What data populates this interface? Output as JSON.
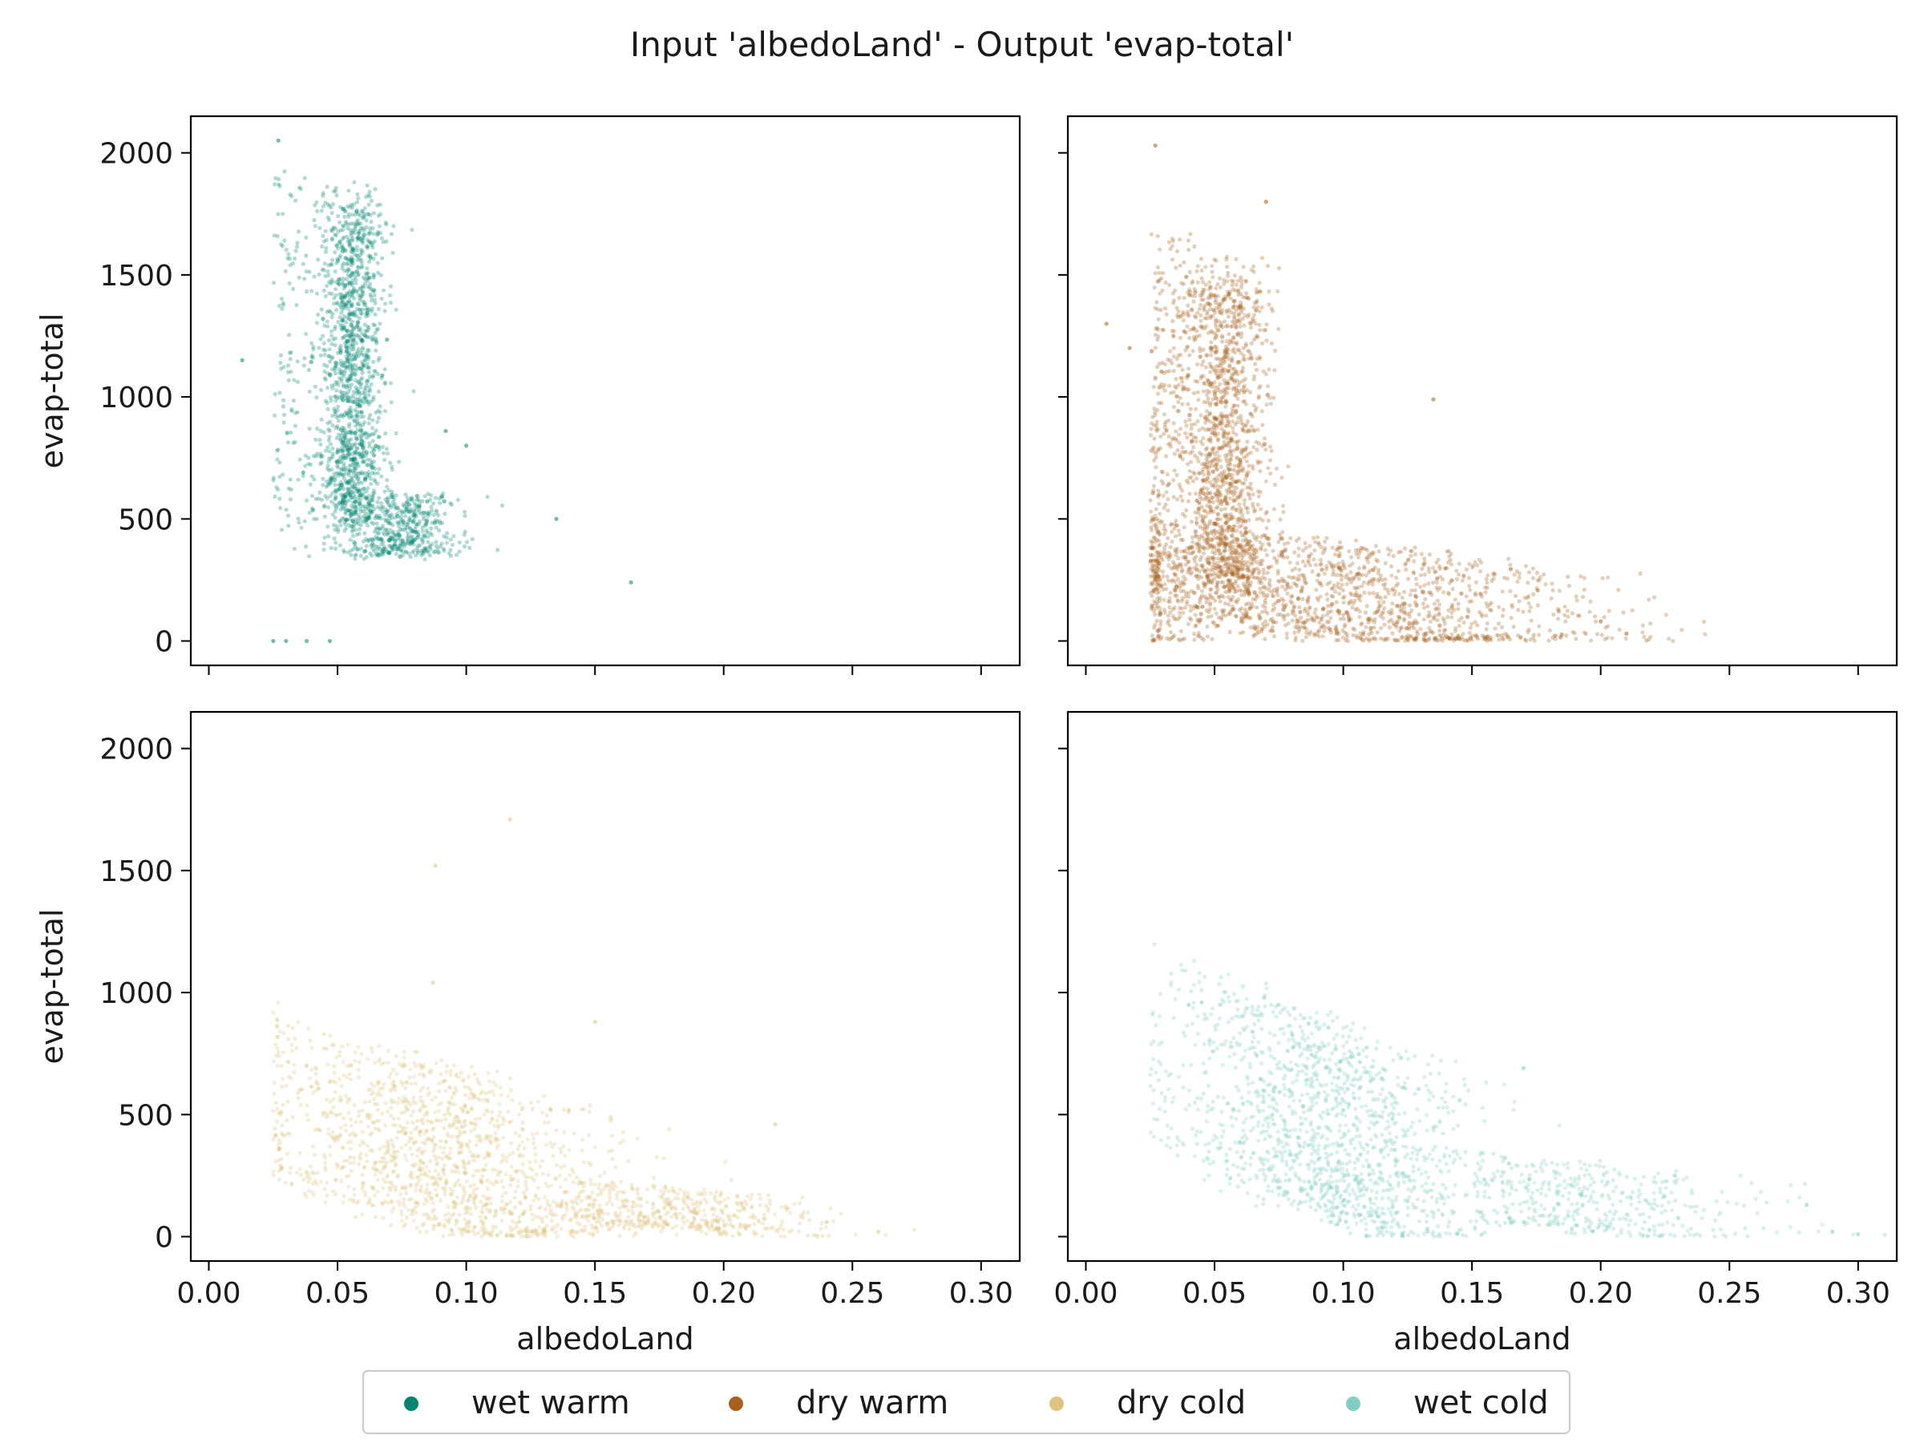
{
  "figure": {
    "title": "Input 'albedoLand' - Output 'evap-total'"
  },
  "chart_data": {
    "type": "scatter",
    "title": "Input 'albedoLand' - Output 'evap-total'",
    "xlabel": "albedoLand",
    "ylabel": "evap-total",
    "xlim": [
      -0.007,
      0.315
    ],
    "ylim": [
      -100,
      2150
    ],
    "xticks": [
      0.0,
      0.05,
      0.1,
      0.15,
      0.2,
      0.25,
      0.3
    ],
    "xtick_labels": [
      "0.00",
      "0.05",
      "0.10",
      "0.15",
      "0.20",
      "0.25",
      "0.30"
    ],
    "yticks": [
      0,
      500,
      1000,
      1500,
      2000
    ],
    "ytick_labels": [
      "0",
      "500",
      "1000",
      "1500",
      "2000"
    ],
    "sharex": true,
    "sharey": true,
    "grid": false,
    "legend_position": "bottom-center",
    "panels": [
      {
        "series": "wet warm",
        "row": 0,
        "col": 0,
        "color": "#018571",
        "clusters": [
          {
            "x_center": 0.056,
            "x_spread": 0.006,
            "y_min": 500,
            "y_max": 1800,
            "density": "dense"
          },
          {
            "x_center": 0.035,
            "x_spread": 0.008,
            "y_min": 400,
            "y_max": 1900,
            "density": "sparse"
          },
          {
            "x_center": 0.075,
            "x_spread": 0.012,
            "y_min": 350,
            "y_max": 600,
            "density": "medium"
          }
        ],
        "outliers": [
          [
            0.164,
            240
          ],
          [
            0.135,
            500
          ],
          [
            0.013,
            1150
          ],
          [
            0.027,
            2050
          ],
          [
            0.025,
            0
          ],
          [
            0.03,
            0
          ],
          [
            0.038,
            0
          ],
          [
            0.047,
            0
          ],
          [
            0.1,
            800
          ],
          [
            0.092,
            860
          ]
        ]
      },
      {
        "series": "dry warm",
        "row": 0,
        "col": 1,
        "color": "#a6611a",
        "clusters": [
          {
            "x_center": 0.055,
            "x_spread": 0.008,
            "y_min": 200,
            "y_max": 1500,
            "density": "dense"
          },
          {
            "x_center": 0.1,
            "x_spread": 0.05,
            "y_min": 0,
            "y_max": 400,
            "density": "dense"
          },
          {
            "x_center": 0.035,
            "x_spread": 0.008,
            "y_min": 0,
            "y_max": 1600,
            "density": "medium"
          }
        ],
        "outliers": [
          [
            0.027,
            2030
          ],
          [
            0.07,
            1800
          ],
          [
            0.008,
            1300
          ],
          [
            0.017,
            1200
          ],
          [
            0.135,
            990
          ],
          [
            0.2,
            80
          ],
          [
            0.21,
            30
          ]
        ]
      },
      {
        "series": "dry cold",
        "row": 1,
        "col": 0,
        "color": "#dfc27d",
        "clusters": [
          {
            "x_center": 0.09,
            "x_spread": 0.035,
            "y_min": 30,
            "y_max": 700,
            "density": "dense"
          },
          {
            "x_center": 0.18,
            "x_spread": 0.03,
            "y_min": 30,
            "y_max": 200,
            "density": "medium"
          }
        ],
        "outliers": [
          [
            0.117,
            1710
          ],
          [
            0.088,
            1520
          ],
          [
            0.087,
            1040
          ],
          [
            0.038,
            700
          ],
          [
            0.24,
            60
          ],
          [
            0.26,
            20
          ],
          [
            0.22,
            460
          ],
          [
            0.15,
            880
          ]
        ]
      },
      {
        "series": "wet cold",
        "row": 1,
        "col": 1,
        "color": "#80cdc1",
        "clusters": [
          {
            "x_center": 0.09,
            "x_spread": 0.03,
            "y_min": 100,
            "y_max": 900,
            "density": "dense"
          },
          {
            "x_center": 0.19,
            "x_spread": 0.04,
            "y_min": 20,
            "y_max": 300,
            "density": "medium"
          }
        ],
        "outliers": [
          [
            0.04,
            950
          ],
          [
            0.045,
            960
          ],
          [
            0.17,
            690
          ],
          [
            0.28,
            130
          ],
          [
            0.29,
            20
          ],
          [
            0.3,
            10
          ]
        ]
      }
    ],
    "legend": [
      {
        "label": "wet warm",
        "color": "#018571"
      },
      {
        "label": "dry warm",
        "color": "#a6611a"
      },
      {
        "label": "dry cold",
        "color": "#dfc27d"
      },
      {
        "label": "wet cold",
        "color": "#80cdc1"
      }
    ]
  }
}
